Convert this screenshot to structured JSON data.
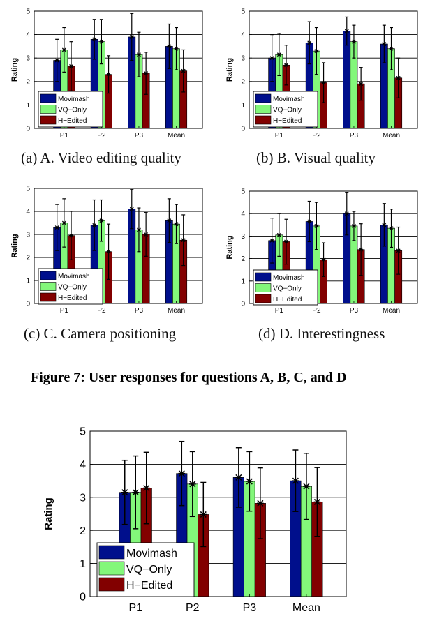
{
  "colors": {
    "movimash": "#000f8c",
    "vq_only": "#83f77a",
    "h_edited": "#820000",
    "grid": "#000000"
  },
  "charts": [
    {
      "caption": "(a)  A. Video editing quality",
      "chart_data": {
        "type": "bar",
        "categories": [
          "P1",
          "P2",
          "P3",
          "Mean"
        ],
        "ylabel": "Rating",
        "ylim": [
          0,
          5
        ],
        "yticks": [
          "0",
          "1",
          "2",
          "3",
          "4",
          "5"
        ],
        "grid": true,
        "legend_position": "bottom-left",
        "series": [
          {
            "name": "Movimash",
            "values": [
              2.9,
              3.8,
              3.9,
              3.5
            ],
            "errors": [
              0.9,
              0.85,
              1.0,
              0.95
            ]
          },
          {
            "name": "VQ−Only",
            "values": [
              3.35,
              3.7,
              3.15,
              3.4
            ],
            "errors": [
              0.95,
              0.95,
              0.95,
              0.9
            ]
          },
          {
            "name": "H−Edited",
            "values": [
              2.65,
              2.3,
              2.35,
              2.45
            ],
            "errors": [
              1.05,
              0.8,
              0.9,
              0.9
            ]
          }
        ]
      }
    },
    {
      "caption": "(b)  B. Visual quality",
      "chart_data": {
        "type": "bar",
        "categories": [
          "P1",
          "P2",
          "P3",
          "Mean"
        ],
        "ylabel": "Rating",
        "ylim": [
          0,
          5
        ],
        "yticks": [
          "0",
          "1",
          "2",
          "3",
          "4",
          "5"
        ],
        "grid": true,
        "legend_position": "bottom-left",
        "series": [
          {
            "name": "Movimash",
            "values": [
              3.0,
              3.65,
              4.15,
              3.6
            ],
            "errors": [
              1.0,
              0.9,
              0.6,
              0.8
            ]
          },
          {
            "name": "VQ−Only",
            "values": [
              3.15,
              3.3,
              3.7,
              3.4
            ],
            "errors": [
              0.9,
              1.0,
              0.7,
              0.9
            ]
          },
          {
            "name": "H−Edited",
            "values": [
              2.7,
              1.95,
              1.9,
              2.15
            ],
            "errors": [
              0.85,
              0.85,
              0.7,
              0.85
            ]
          }
        ]
      }
    },
    {
      "caption": "(c)  C. Camera positioning",
      "chart_data": {
        "type": "bar",
        "categories": [
          "P1",
          "P2",
          "P3",
          "Mean"
        ],
        "ylabel": "Rating",
        "ylim": [
          0,
          5
        ],
        "yticks": [
          "0",
          "1",
          "2",
          "3",
          "4",
          "5"
        ],
        "grid": true,
        "legend_position": "bottom-left",
        "series": [
          {
            "name": "Movimash",
            "values": [
              3.3,
              3.4,
              4.1,
              3.6
            ],
            "errors": [
              1.0,
              1.1,
              0.85,
              0.95
            ]
          },
          {
            "name": "VQ−Only",
            "values": [
              3.5,
              3.6,
              3.2,
              3.45
            ],
            "errors": [
              1.05,
              0.9,
              0.95,
              0.85
            ]
          },
          {
            "name": "H−Edited",
            "values": [
              2.95,
              2.25,
              3.0,
              2.75
            ],
            "errors": [
              1.05,
              1.2,
              0.95,
              1.1
            ]
          }
        ]
      }
    },
    {
      "caption": "(d)  D. Interestingness",
      "chart_data": {
        "type": "bar",
        "categories": [
          "P1",
          "P2",
          "P3",
          "Mean"
        ],
        "ylabel": "Rating",
        "ylim": [
          0,
          5
        ],
        "yticks": [
          "0",
          "1",
          "2",
          "3",
          "4",
          "5"
        ],
        "grid": true,
        "legend_position": "bottom-left",
        "series": [
          {
            "name": "Movimash",
            "values": [
              2.8,
              3.65,
              4.0,
              3.5
            ],
            "errors": [
              1.0,
              0.9,
              0.95,
              0.95
            ]
          },
          {
            "name": "VQ−Only",
            "values": [
              3.05,
              3.45,
              3.45,
              3.35
            ],
            "errors": [
              0.95,
              1.05,
              0.65,
              0.85
            ]
          },
          {
            "name": "H−Edited",
            "values": [
              2.75,
              1.95,
              2.4,
              2.35
            ],
            "errors": [
              1.0,
              0.75,
              1.15,
              1.05
            ]
          }
        ]
      }
    },
    {
      "caption": "",
      "chart_data": {
        "type": "bar",
        "categories": [
          "P1",
          "P2",
          "P3",
          "Mean"
        ],
        "ylabel": "Rating",
        "ylim": [
          0,
          5
        ],
        "yticks": [
          "0",
          "1",
          "2",
          "3",
          "4",
          "5"
        ],
        "grid": true,
        "legend_position": "bottom-left",
        "series": [
          {
            "name": "Movimash",
            "values": [
              3.15,
              3.72,
              3.6,
              3.5
            ],
            "errors": [
              0.97,
              0.97,
              0.9,
              0.93
            ]
          },
          {
            "name": "VQ−Only",
            "values": [
              3.15,
              3.4,
              3.48,
              3.33
            ],
            "errors": [
              1.1,
              0.98,
              0.9,
              1.0
            ]
          },
          {
            "name": "H−Edited",
            "values": [
              3.28,
              2.48,
              2.82,
              2.86
            ],
            "errors": [
              1.08,
              0.97,
              1.07,
              1.04
            ]
          }
        ]
      }
    }
  ],
  "figure_caption": "Figure 7: User responses for questions A, B, C, and D"
}
